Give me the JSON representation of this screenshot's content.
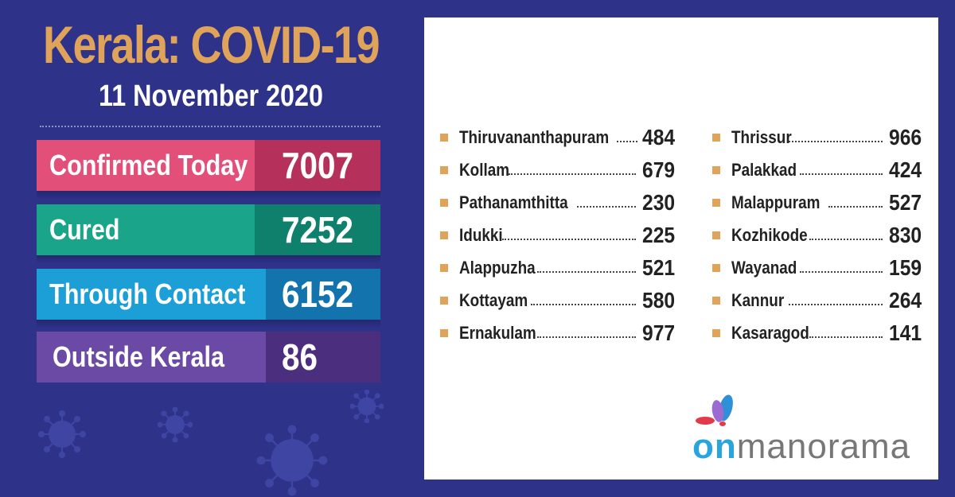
{
  "header": {
    "title": "Kerala: COVID-19",
    "date": "11 November 2020"
  },
  "stats": [
    {
      "label": "Confirmed Today",
      "value": "7007",
      "label_color": "#e2507a",
      "value_color": "#b5305a"
    },
    {
      "label": "Cured",
      "value": "7252",
      "label_color": "#1aa58a",
      "value_color": "#0f806b"
    },
    {
      "label": "Through Contact",
      "value": "6152",
      "label_color": "#1b9fd6",
      "value_color": "#1273ad"
    },
    {
      "label": "Outside Kerala",
      "value": "86",
      "label_color": "#6a4aa5",
      "value_color": "#4b2f7e"
    }
  ],
  "districts_left": [
    {
      "name": "Thiruvananthapuram",
      "count": "484"
    },
    {
      "name": "Kollam",
      "count": "679"
    },
    {
      "name": "Pathanamthitta",
      "count": "230"
    },
    {
      "name": "Idukki",
      "count": "225"
    },
    {
      "name": "Alappuzha",
      "count": "521"
    },
    {
      "name": "Kottayam",
      "count": "580"
    },
    {
      "name": "Ernakulam",
      "count": "977"
    }
  ],
  "districts_right": [
    {
      "name": "Thrissur",
      "count": "966"
    },
    {
      "name": "Palakkad",
      "count": "424"
    },
    {
      "name": "Malappuram",
      "count": "527"
    },
    {
      "name": "Kozhikode",
      "count": "830"
    },
    {
      "name": "Wayanad",
      "count": "159"
    },
    {
      "name": "Kannur",
      "count": "264"
    },
    {
      "name": "Kasaragod",
      "count": "141"
    }
  ],
  "logo": {
    "part1": "on",
    "part2": "manorama"
  },
  "icons": [
    "virus-icon",
    "butterfly-logo-icon"
  ],
  "colors": {
    "background": "#2e3289",
    "title": "#e0a35a",
    "bullet": "#e0a35a"
  }
}
